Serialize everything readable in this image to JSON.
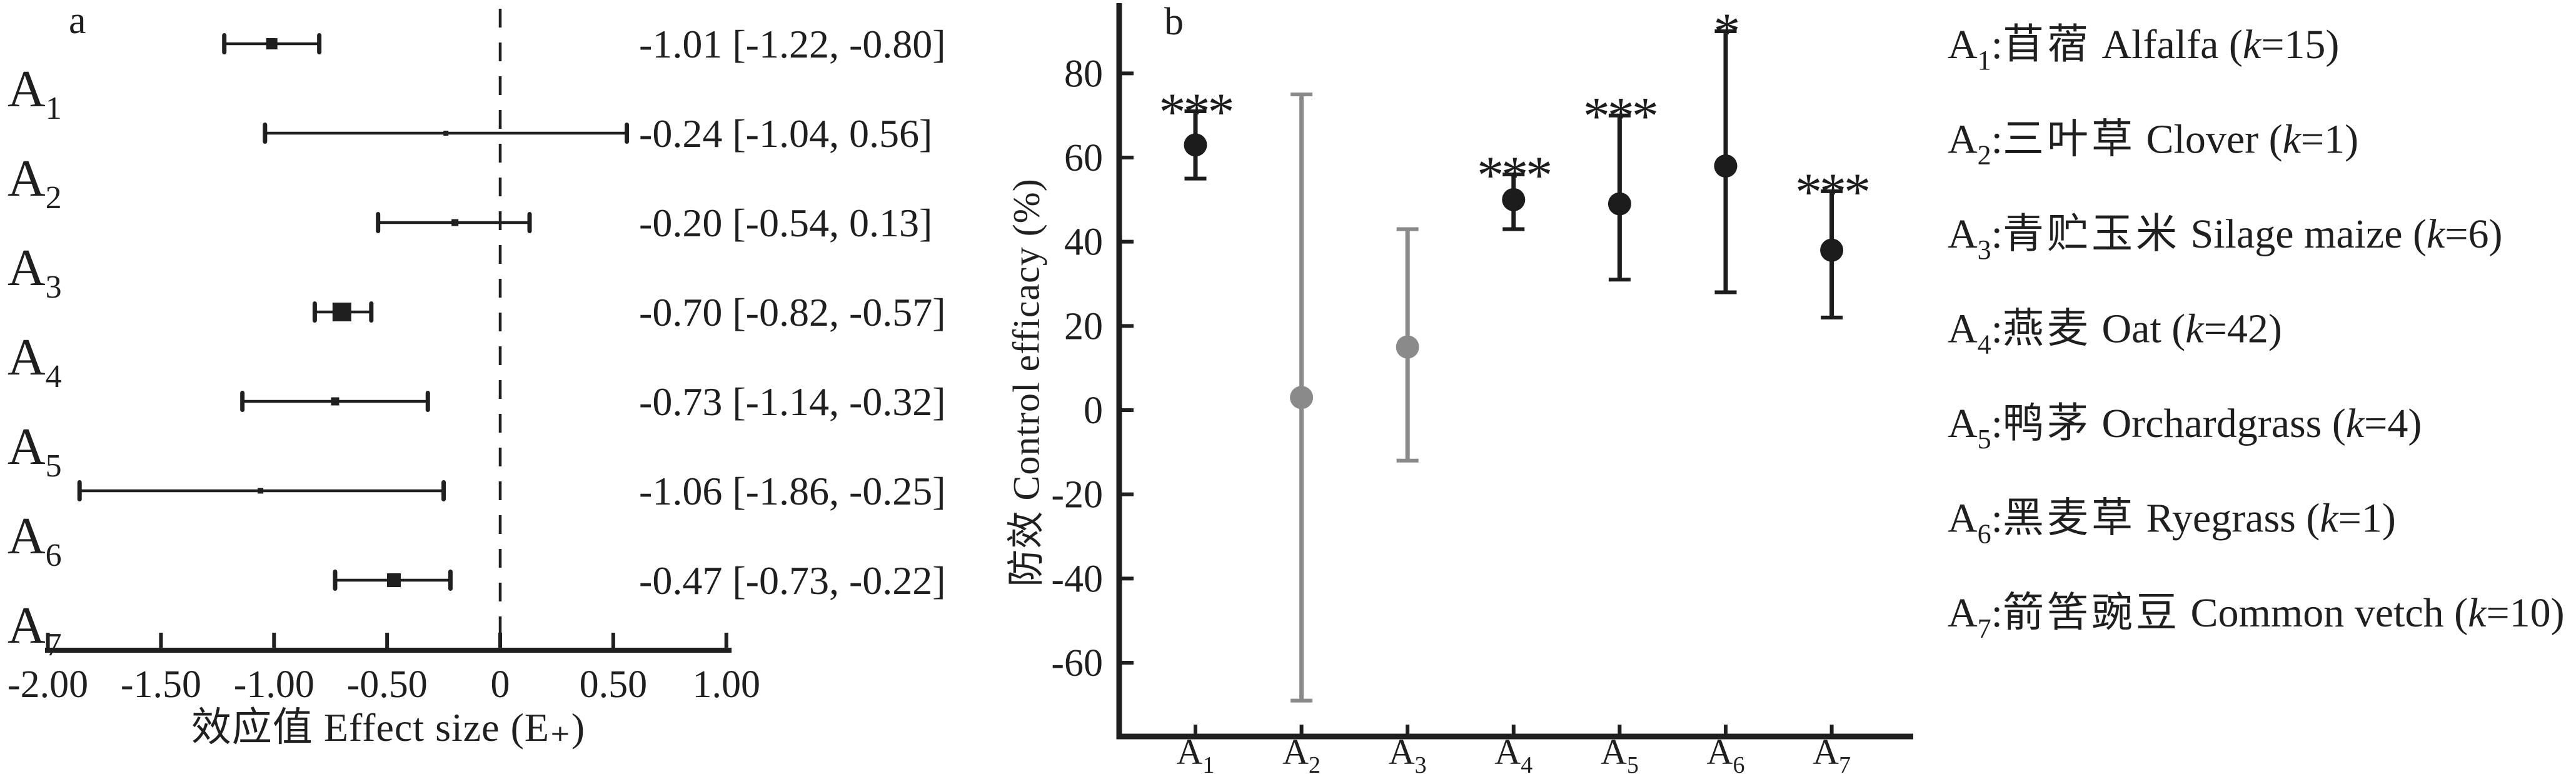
{
  "colors": {
    "ink": "#1f1f1f",
    "black": "#1c1c1c",
    "gray": "#8a8a8a",
    "background": "#ffffff"
  },
  "chart_data": [
    {
      "type": "forest",
      "panel_label": "a",
      "xlabel": "效应值 Effect size (E₊)",
      "xlim": [
        -2.05,
        1.05
      ],
      "zero_line": 0,
      "grid": false,
      "x_tick_values": [
        -2.0,
        -1.5,
        -1.0,
        -0.5,
        0,
        0.5,
        1.0
      ],
      "x_tick_labels": [
        "-2.00",
        "-1.50",
        "-1.00",
        "-0.50",
        "0",
        "0.50",
        "1.00"
      ],
      "rows": [
        {
          "name": "A",
          "sub": "1",
          "mean": -1.01,
          "ci_low": -1.22,
          "ci_high": -0.8,
          "ci_label": "-1.01 [-1.22, -0.80]",
          "marker_px": 18
        },
        {
          "name": "A",
          "sub": "2",
          "mean": -0.24,
          "ci_low": -1.04,
          "ci_high": 0.56,
          "ci_label": "-0.24 [-1.04, 0.56]",
          "marker_px": 8
        },
        {
          "name": "A",
          "sub": "3",
          "mean": -0.2,
          "ci_low": -0.54,
          "ci_high": 0.13,
          "ci_label": "-0.20 [-0.54, 0.13]",
          "marker_px": 11
        },
        {
          "name": "A",
          "sub": "4",
          "mean": -0.7,
          "ci_low": -0.82,
          "ci_high": -0.57,
          "ci_label": "-0.70 [-0.82, -0.57]",
          "marker_px": 30
        },
        {
          "name": "A",
          "sub": "5",
          "mean": -0.73,
          "ci_low": -1.14,
          "ci_high": -0.32,
          "ci_label": "-0.73 [-1.14, -0.32]",
          "marker_px": 13
        },
        {
          "name": "A",
          "sub": "6",
          "mean": -1.06,
          "ci_low": -1.86,
          "ci_high": -0.25,
          "ci_label": "-1.06 [-1.86, -0.25]",
          "marker_px": 9
        },
        {
          "name": "A",
          "sub": "7",
          "mean": -0.47,
          "ci_low": -0.73,
          "ci_high": -0.22,
          "ci_label": "-0.47 [-0.73, -0.22]",
          "marker_px": 22
        }
      ]
    },
    {
      "type": "scatter-ci",
      "panel_label": "b",
      "ylabel": "防效 Control efficacy (%)",
      "ylim": [
        -77,
        97
      ],
      "grid": false,
      "y_tick_values": [
        80,
        60,
        40,
        20,
        0,
        -20,
        -40,
        -60
      ],
      "y_tick_labels": [
        "80",
        "60",
        "40",
        "20",
        "0",
        "-20",
        "-40",
        "-60"
      ],
      "categories": [
        "A₁",
        "A₂",
        "A₃",
        "A₄",
        "A₅",
        "A₆",
        "A₇"
      ],
      "points": [
        {
          "name": "A",
          "sub": "1",
          "value": 63,
          "ci_low": 55,
          "ci_high": 71,
          "sig": "***",
          "color_key": "black"
        },
        {
          "name": "A",
          "sub": "2",
          "value": 3,
          "ci_low": -69,
          "ci_high": 75,
          "sig": "",
          "color_key": "gray"
        },
        {
          "name": "A",
          "sub": "3",
          "value": 15,
          "ci_low": -12,
          "ci_high": 43,
          "sig": "",
          "color_key": "gray"
        },
        {
          "name": "A",
          "sub": "4",
          "value": 50,
          "ci_low": 43,
          "ci_high": 56,
          "sig": "***",
          "color_key": "black"
        },
        {
          "name": "A",
          "sub": "5",
          "value": 49,
          "ci_low": 31,
          "ci_high": 70,
          "sig": "***",
          "color_key": "black"
        },
        {
          "name": "A",
          "sub": "6",
          "value": 58,
          "ci_low": 28,
          "ci_high": 90,
          "sig": "*",
          "color_key": "black"
        },
        {
          "name": "A",
          "sub": "7",
          "value": 38,
          "ci_low": 22,
          "ci_high": 52,
          "sig": "***",
          "color_key": "black"
        }
      ]
    }
  ],
  "legend": {
    "items": [
      {
        "name": "A",
        "sub": "1",
        "cn": "苜蓿",
        "en": "Alfalfa",
        "k": "15"
      },
      {
        "name": "A",
        "sub": "2",
        "cn": "三叶草",
        "en": "Clover",
        "k": "1"
      },
      {
        "name": "A",
        "sub": "3",
        "cn": "青贮玉米",
        "en": "Silage maize",
        "k": "6"
      },
      {
        "name": "A",
        "sub": "4",
        "cn": "燕麦",
        "en": "Oat",
        "k": "42"
      },
      {
        "name": "A",
        "sub": "5",
        "cn": "鸭茅",
        "en": "Orchardgrass",
        "k": "4"
      },
      {
        "name": "A",
        "sub": "6",
        "cn": "黑麦草",
        "en": "Ryegrass",
        "k": "1"
      },
      {
        "name": "A",
        "sub": "7",
        "cn": "箭筈豌豆",
        "en": "Common vetch",
        "k": "10"
      }
    ]
  }
}
